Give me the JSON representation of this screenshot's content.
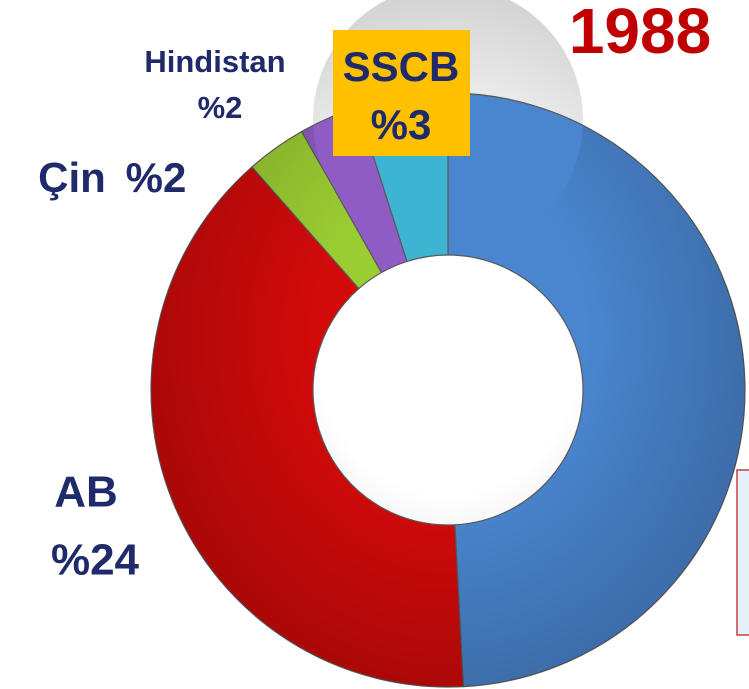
{
  "chart_data": {
    "type": "donut",
    "title": "1988",
    "categories": [
      null,
      "AB",
      "Çin",
      "Hindistan",
      "SSCB"
    ],
    "values": [
      30,
      24,
      2,
      2,
      3
    ],
    "value_labels": [
      null,
      "%24",
      "%2",
      "%2",
      "%3"
    ],
    "colors": [
      "#4a86d0",
      "#d20a0a",
      "#9acd32",
      "#8e5cc4",
      "#3db4d2"
    ]
  }
}
